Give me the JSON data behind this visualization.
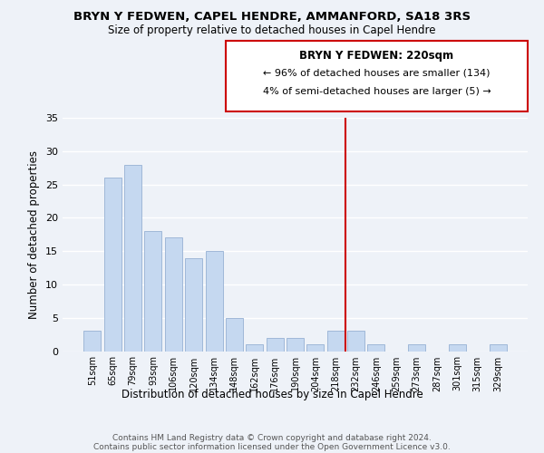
{
  "title": "BRYN Y FEDWEN, CAPEL HENDRE, AMMANFORD, SA18 3RS",
  "subtitle": "Size of property relative to detached houses in Capel Hendre",
  "xlabel": "Distribution of detached houses by size in Capel Hendre",
  "ylabel": "Number of detached properties",
  "bin_labels": [
    "51sqm",
    "65sqm",
    "79sqm",
    "93sqm",
    "106sqm",
    "120sqm",
    "134sqm",
    "148sqm",
    "162sqm",
    "176sqm",
    "190sqm",
    "204sqm",
    "218sqm",
    "232sqm",
    "246sqm",
    "259sqm",
    "273sqm",
    "287sqm",
    "301sqm",
    "315sqm",
    "329sqm"
  ],
  "bar_values": [
    3,
    26,
    28,
    18,
    17,
    14,
    15,
    5,
    1,
    2,
    2,
    1,
    3,
    3,
    1,
    0,
    1,
    0,
    1,
    0,
    1
  ],
  "bar_color": "#c5d8f0",
  "bar_edge_color": "#a0b8d8",
  "property_line_x": 12.5,
  "property_line_color": "#cc0000",
  "ylim": [
    0,
    35
  ],
  "yticks": [
    0,
    5,
    10,
    15,
    20,
    25,
    30,
    35
  ],
  "annotation_title": "BRYN Y FEDWEN: 220sqm",
  "annotation_line1": "← 96% of detached houses are smaller (134)",
  "annotation_line2": "4% of semi-detached houses are larger (5) →",
  "annotation_box_color": "#ffffff",
  "annotation_box_edge": "#cc0000",
  "footer1": "Contains HM Land Registry data © Crown copyright and database right 2024.",
  "footer2": "Contains public sector information licensed under the Open Government Licence v3.0.",
  "background_color": "#eef2f8"
}
